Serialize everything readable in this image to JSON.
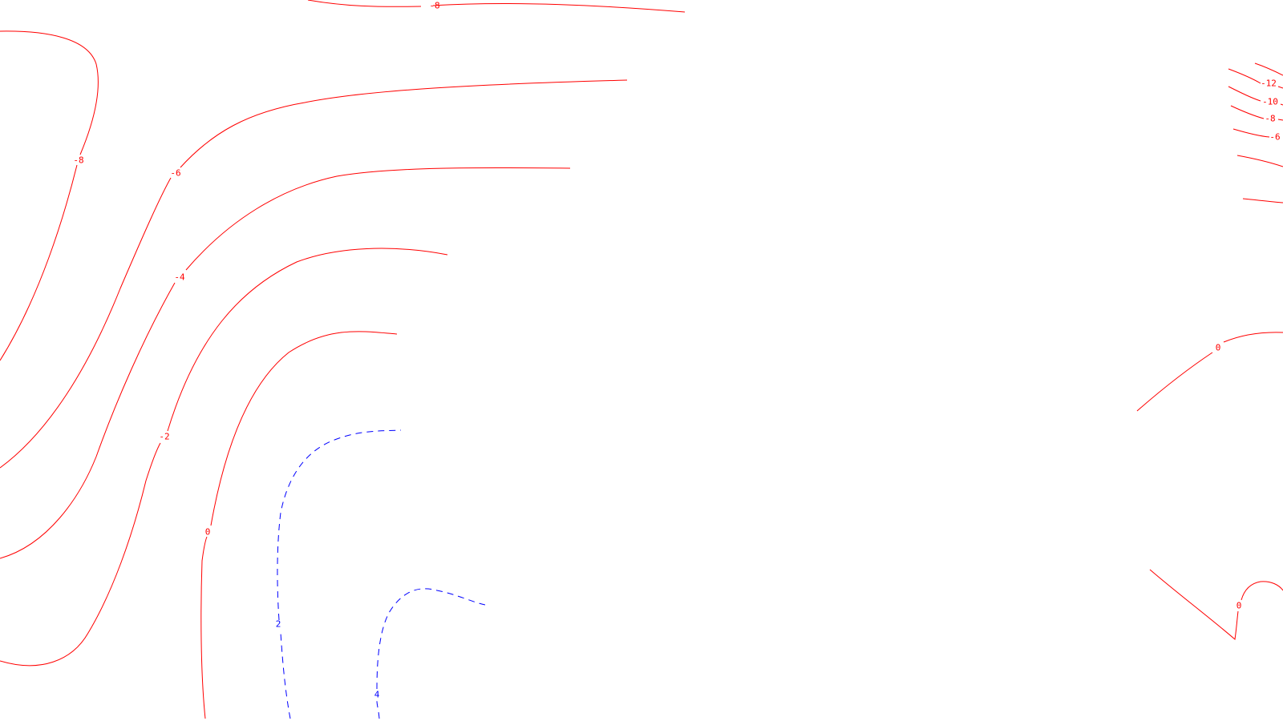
{
  "map": {
    "colors": {
      "negative_and_zero": "#ff0000",
      "positive": "#0000ff",
      "background": "#ffffff"
    },
    "line_styles": {
      "negative_and_zero": "solid",
      "positive": "dashed"
    },
    "contour_labels": [
      {
        "id": "label-top-m8",
        "text": "-8"
      },
      {
        "id": "label-left-m8",
        "text": "-8"
      },
      {
        "id": "label-m6",
        "text": "-6"
      },
      {
        "id": "label-m4",
        "text": "-4"
      },
      {
        "id": "label-m2",
        "text": "-2"
      },
      {
        "id": "label-0",
        "text": "0"
      },
      {
        "id": "label-2",
        "text": "2"
      },
      {
        "id": "label-4",
        "text": "4"
      },
      {
        "id": "label-right-m12",
        "text": "-12"
      },
      {
        "id": "label-right-m10",
        "text": "-10"
      },
      {
        "id": "label-right-m8",
        "text": "-8"
      },
      {
        "id": "label-right-m6",
        "text": "-6"
      },
      {
        "id": "label-right-0-upper",
        "text": "0"
      },
      {
        "id": "label-right-0-lower",
        "text": "0"
      }
    ]
  }
}
